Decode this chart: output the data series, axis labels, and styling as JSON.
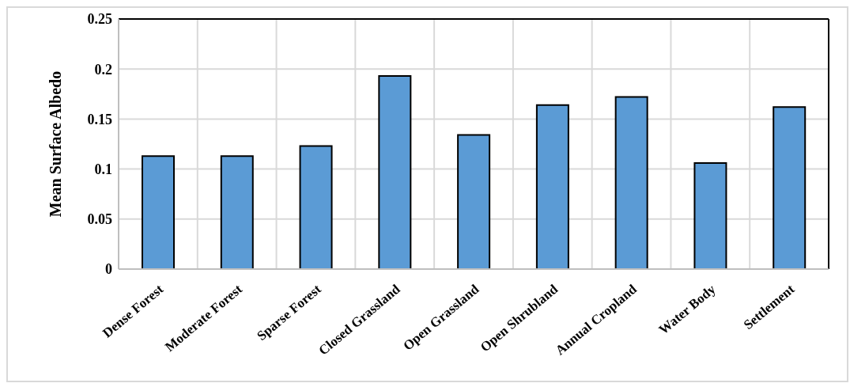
{
  "chart_data": {
    "type": "bar",
    "ylabel": "Mean Surface Albedo",
    "categories": [
      "Dense Forest",
      "Moderate Forest",
      "Sparse Forest",
      "Closed Grassland",
      "Open Grassland",
      "Open Shrubland",
      "Annual Cropland",
      "Water Body",
      "Settlement"
    ],
    "values": [
      0.113,
      0.113,
      0.123,
      0.193,
      0.134,
      0.164,
      0.172,
      0.106,
      0.162
    ],
    "color": "#5b9bd5",
    "ylim": [
      0,
      0.25
    ],
    "yticks": [
      0,
      0.05,
      0.1,
      0.15,
      0.2,
      0.25
    ],
    "grid": true
  }
}
